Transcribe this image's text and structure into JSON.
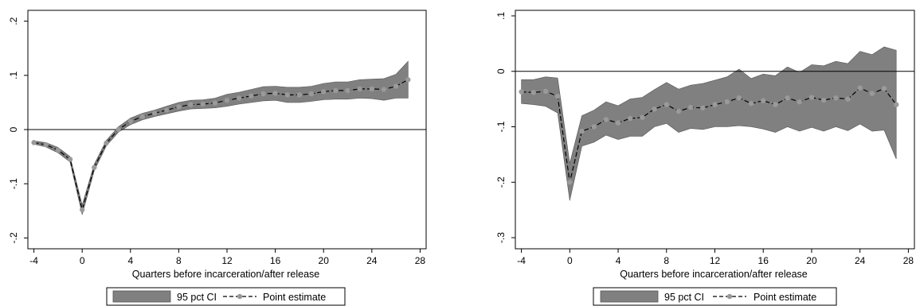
{
  "chart_data": [
    {
      "type": "line",
      "xlabel": "Quarters before incarceration/after release",
      "ylabel": "",
      "xlim": [
        -4.5,
        28.5
      ],
      "ylim": [
        -0.22,
        0.22
      ],
      "xticks": [
        -4,
        0,
        4,
        8,
        12,
        16,
        20,
        24,
        28
      ],
      "xtick_labels": [
        "-4",
        "0",
        "4",
        "8",
        "12",
        "16",
        "20",
        "24",
        "28"
      ],
      "yticks": [
        -0.2,
        -0.1,
        0,
        0.1,
        0.2
      ],
      "ytick_labels": [
        "-.2",
        "-.1",
        "0",
        ".1",
        ".2"
      ],
      "reference_line_y": 0,
      "x": [
        -4,
        -3,
        -2,
        -1,
        0,
        1,
        2,
        3,
        4,
        5,
        6,
        7,
        8,
        9,
        10,
        11,
        12,
        13,
        14,
        15,
        16,
        17,
        18,
        19,
        20,
        21,
        22,
        23,
        24,
        25,
        26,
        27
      ],
      "series": [
        {
          "name": "Point estimate",
          "values": [
            -0.024,
            -0.028,
            -0.038,
            -0.055,
            -0.148,
            -0.07,
            -0.025,
            0,
            0.015,
            0.024,
            0.03,
            0.036,
            0.042,
            0.046,
            0.047,
            0.049,
            0.054,
            0.058,
            0.062,
            0.066,
            0.067,
            0.064,
            0.064,
            0.066,
            0.07,
            0.072,
            0.072,
            0.075,
            0.075,
            0.074,
            0.08,
            0.092
          ]
        },
        {
          "name": "95 pct CI",
          "lower": [
            -0.027,
            -0.032,
            -0.043,
            -0.06,
            -0.157,
            -0.076,
            -0.03,
            -0.005,
            0.009,
            0.018,
            0.024,
            0.029,
            0.034,
            0.038,
            0.039,
            0.04,
            0.043,
            0.047,
            0.05,
            0.053,
            0.054,
            0.05,
            0.05,
            0.052,
            0.055,
            0.056,
            0.056,
            0.058,
            0.057,
            0.054,
            0.058,
            0.058
          ],
          "upper": [
            -0.021,
            -0.024,
            -0.033,
            -0.05,
            -0.139,
            -0.064,
            -0.02,
            0.005,
            0.021,
            0.03,
            0.036,
            0.043,
            0.05,
            0.054,
            0.055,
            0.058,
            0.065,
            0.069,
            0.074,
            0.079,
            0.08,
            0.078,
            0.078,
            0.08,
            0.085,
            0.088,
            0.088,
            0.092,
            0.093,
            0.094,
            0.102,
            0.126
          ]
        }
      ],
      "legend": {
        "placement": "bottom",
        "entries": [
          "95 pct CI",
          "Point estimate"
        ]
      },
      "colors": {
        "ci_fill": "#808080",
        "ci_stroke": "#555555",
        "line": "#000000",
        "marker": "#9a9a9a"
      }
    },
    {
      "type": "line",
      "xlabel": "Quarters before incarceration/after release",
      "ylabel": "",
      "xlim": [
        -4.5,
        28.5
      ],
      "ylim": [
        -0.32,
        0.11
      ],
      "xticks": [
        -4,
        0,
        4,
        8,
        12,
        16,
        20,
        24,
        28
      ],
      "xtick_labels": [
        "-4",
        "0",
        "4",
        "8",
        "12",
        "16",
        "20",
        "24",
        "28"
      ],
      "yticks": [
        -0.3,
        -0.2,
        -0.1,
        0,
        0.1
      ],
      "ytick_labels": [
        "-.3",
        "-.2",
        "-.1",
        "0",
        ".1"
      ],
      "reference_line_y": 0,
      "x": [
        -4,
        -3,
        -2,
        -1,
        0,
        1,
        2,
        3,
        4,
        5,
        6,
        7,
        8,
        9,
        10,
        11,
        12,
        13,
        14,
        15,
        16,
        17,
        18,
        19,
        20,
        21,
        22,
        23,
        24,
        25,
        26,
        27
      ],
      "series": [
        {
          "name": "Point estimate",
          "values": [
            -0.037,
            -0.038,
            -0.036,
            -0.045,
            -0.2,
            -0.108,
            -0.1,
            -0.087,
            -0.093,
            -0.085,
            -0.083,
            -0.068,
            -0.06,
            -0.072,
            -0.065,
            -0.066,
            -0.06,
            -0.055,
            -0.048,
            -0.058,
            -0.053,
            -0.06,
            -0.048,
            -0.055,
            -0.047,
            -0.052,
            -0.048,
            -0.05,
            -0.03,
            -0.04,
            -0.031,
            -0.06
          ]
        },
        {
          "name": "95 pct CI",
          "lower": [
            -0.058,
            -0.06,
            -0.063,
            -0.075,
            -0.233,
            -0.135,
            -0.128,
            -0.115,
            -0.123,
            -0.117,
            -0.117,
            -0.1,
            -0.094,
            -0.11,
            -0.103,
            -0.105,
            -0.1,
            -0.1,
            -0.098,
            -0.1,
            -0.104,
            -0.11,
            -0.1,
            -0.108,
            -0.101,
            -0.108,
            -0.1,
            -0.107,
            -0.095,
            -0.108,
            -0.106,
            -0.158
          ],
          "upper": [
            -0.015,
            -0.015,
            -0.01,
            -0.012,
            -0.166,
            -0.08,
            -0.07,
            -0.055,
            -0.062,
            -0.05,
            -0.047,
            -0.033,
            -0.02,
            -0.032,
            -0.025,
            -0.022,
            -0.016,
            -0.01,
            0.004,
            -0.013,
            -0.005,
            -0.008,
            0.008,
            -0.002,
            0.012,
            0.01,
            0.018,
            0.014,
            0.036,
            0.03,
            0.044,
            0.038
          ]
        }
      ],
      "legend": {
        "placement": "bottom",
        "entries": [
          "95 pct CI",
          "Point estimate"
        ]
      },
      "colors": {
        "ci_fill": "#808080",
        "ci_stroke": "#555555",
        "line": "#000000",
        "marker": "#9a9a9a"
      }
    }
  ]
}
